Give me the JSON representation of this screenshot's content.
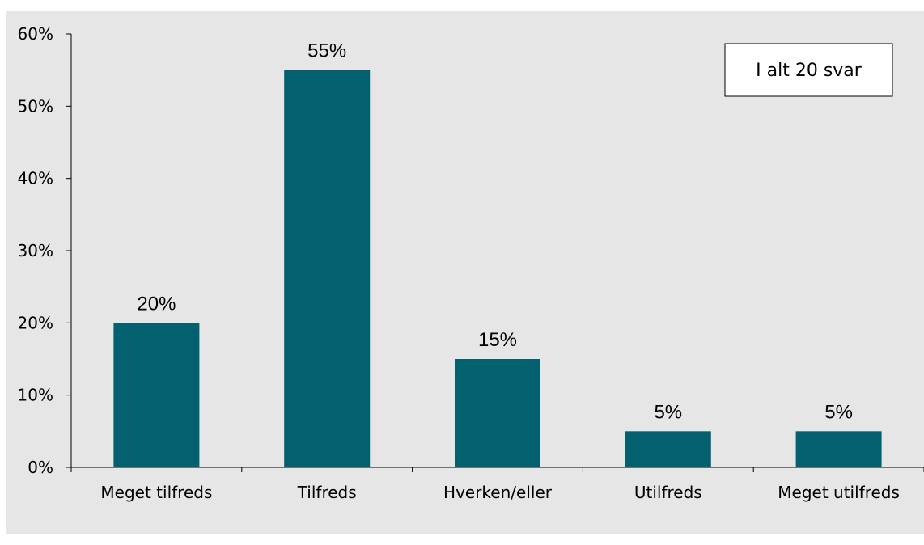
{
  "chart_data": {
    "type": "bar",
    "title": "",
    "xlabel": "",
    "ylabel": "",
    "categories": [
      "Meget tilfreds",
      "Tilfreds",
      "Hverken/eller",
      "Utilfreds",
      "Meget utilfreds"
    ],
    "values": [
      20,
      55,
      15,
      5,
      5
    ],
    "data_labels": [
      "20%",
      "55%",
      "15%",
      "5%",
      "5%"
    ],
    "ylim": [
      0,
      60
    ],
    "yticks": [
      0,
      10,
      20,
      30,
      40,
      50,
      60
    ],
    "ytick_labels": [
      "0%",
      "10%",
      "20%",
      "30%",
      "40%",
      "50%",
      "60%"
    ],
    "grid": false,
    "legend": null,
    "annotation": "I alt 20 svar",
    "colors": {
      "bar": "#03606E",
      "plot_background": "#E6E6E6",
      "page_background": "#FFFFFF",
      "axis": "#000000",
      "annotation_box": "#FFFFFF"
    }
  }
}
